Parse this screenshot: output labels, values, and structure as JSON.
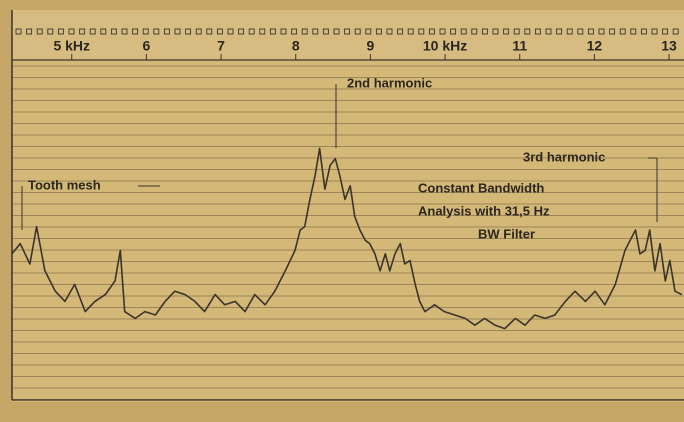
{
  "chart_data": {
    "type": "line",
    "annotations": {
      "tooth_mesh": "Tooth mesh",
      "second": "2nd harmonic",
      "third": "3rd harmonic",
      "filter": [
        "Constant Bandwidth",
        "Analysis with 31,5 Hz",
        "BW Filter"
      ]
    },
    "xlim": [
      4.2,
      13.2
    ],
    "xticks": [
      {
        "value": 5,
        "label": "5 kHz"
      },
      6,
      7,
      8,
      9,
      {
        "value": 10,
        "label": "10 kHz"
      },
      11,
      12,
      13
    ],
    "ylim": [
      0,
      100
    ],
    "color": "#3a342c",
    "x": [
      4.2,
      4.31,
      4.44,
      4.53,
      4.64,
      4.78,
      4.91,
      5.04,
      5.18,
      5.31,
      5.45,
      5.58,
      5.65,
      5.71,
      5.85,
      5.98,
      6.12,
      6.25,
      6.38,
      6.52,
      6.65,
      6.78,
      6.92,
      7.05,
      7.19,
      7.32,
      7.45,
      7.59,
      7.72,
      7.86,
      7.99,
      8.06,
      8.12,
      8.19,
      8.26,
      8.32,
      8.39,
      8.46,
      8.53,
      8.59,
      8.66,
      8.73,
      8.79,
      8.86,
      8.93,
      8.99,
      9.06,
      9.13,
      9.2,
      9.26,
      9.33,
      9.4,
      9.46,
      9.53,
      9.6,
      9.66,
      9.73,
      9.86,
      9.99,
      10.13,
      10.27,
      10.4,
      10.53,
      10.67,
      10.8,
      10.94,
      11.07,
      11.2,
      11.34,
      11.47,
      11.61,
      11.74,
      11.88,
      12.01,
      12.14,
      12.28,
      12.41,
      12.48,
      12.55,
      12.61,
      12.68,
      12.74,
      12.81,
      12.88,
      12.95,
      13.01,
      13.08,
      13.17
    ],
    "values": [
      43,
      46,
      40,
      51,
      38,
      32,
      29,
      34,
      26,
      29,
      31,
      35,
      44,
      26,
      24,
      26,
      25,
      29,
      32,
      31,
      29,
      26,
      31,
      28,
      29,
      26,
      31,
      28,
      32,
      38,
      44,
      50,
      51,
      59,
      66,
      74,
      62,
      69,
      71,
      66,
      59,
      63,
      54,
      50,
      47,
      46,
      43,
      38,
      43,
      38,
      43,
      46,
      40,
      41,
      34,
      29,
      26,
      28,
      26,
      25,
      24,
      22,
      24,
      22,
      21,
      24,
      22,
      25,
      24,
      25,
      29,
      32,
      29,
      32,
      28,
      34,
      44,
      47,
      50,
      43,
      44,
      50,
      38,
      46,
      35,
      41,
      32,
      31
    ]
  }
}
